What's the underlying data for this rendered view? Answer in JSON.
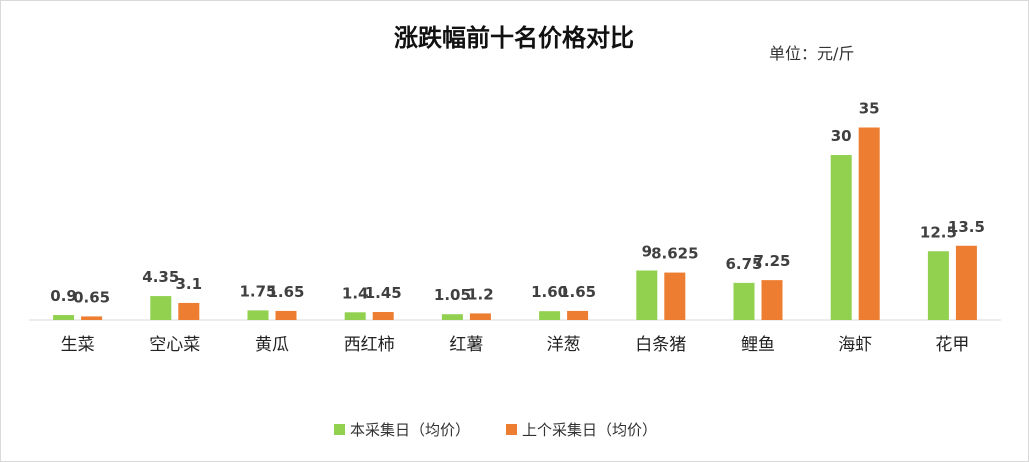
{
  "chart_data": {
    "type": "bar",
    "title": "涨跌幅前十名价格对比",
    "unit_label": "单位：元/斤",
    "xlabel": "",
    "ylabel": "",
    "ylim": [
      0,
      40
    ],
    "grid": false,
    "legend_position": "bottom",
    "categories": [
      "生菜",
      "空心菜",
      "黄瓜",
      "西红柿",
      "红薯",
      "洋葱",
      "白条猪",
      "鲤鱼",
      "海虾",
      "花甲"
    ],
    "series": [
      {
        "name": "本采集日（均价）",
        "color": "#92d050",
        "values": [
          0.9,
          4.35,
          1.75,
          1.4,
          1.05,
          1.6,
          9,
          6.75,
          30,
          12.5
        ],
        "labels": [
          "0.9",
          "4.35",
          "1.75",
          "1.4",
          "1.05",
          "1.60",
          "9",
          "6.75",
          "30",
          "12.5"
        ]
      },
      {
        "name": "上个采集日（均价）",
        "color": "#ed7d31",
        "values": [
          0.65,
          3.1,
          1.65,
          1.45,
          1.2,
          1.65,
          8.625,
          7.25,
          35,
          13.5
        ],
        "labels": [
          "0.65",
          "3.1",
          "1.65",
          "1.45",
          "1.2",
          "1.65",
          "8.625",
          "7.25",
          "35",
          "13.5"
        ]
      }
    ]
  },
  "colors": {
    "axis": "#d9d9d9",
    "label": "#404040"
  }
}
